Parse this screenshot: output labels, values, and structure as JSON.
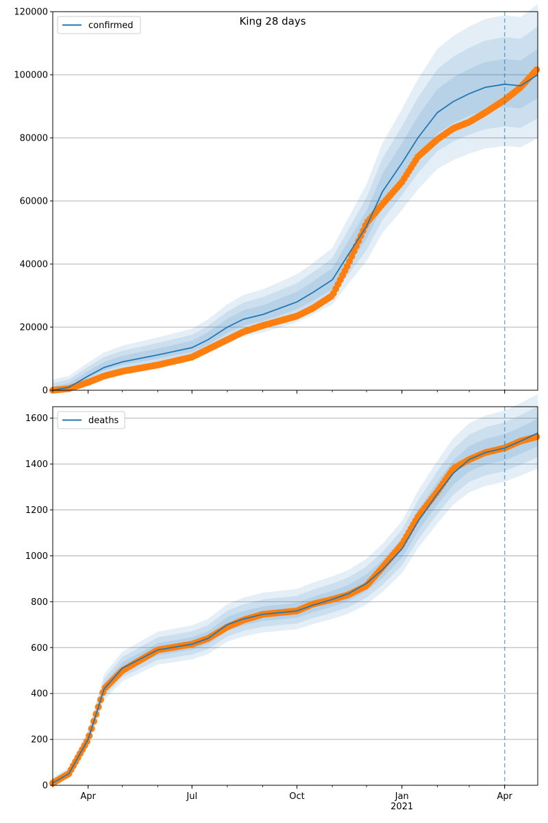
{
  "chart_data": [
    {
      "type": "line",
      "title": "King 28 days",
      "legend": [
        "confirmed"
      ],
      "legend_position": "top-left",
      "grid": "horizontal",
      "xlim": [
        "2020-03-01",
        "2021-04-30"
      ],
      "ylim": [
        0,
        120000
      ],
      "yticks": [
        0,
        20000,
        40000,
        60000,
        80000,
        100000,
        120000
      ],
      "ytick_labels": [
        "0",
        "20000",
        "40000",
        "60000",
        "80000",
        "100000",
        "120000"
      ],
      "forecast_start": "2021-04-01",
      "colors": {
        "model": "#1f77b4",
        "observed": "#ff7f0e",
        "band": "#1f77b4",
        "grid": "#b0b0b0"
      },
      "series": [
        {
          "name": "confirmed",
          "role": "model median",
          "x": [
            "2020-03-01",
            "2020-03-15",
            "2020-04-01",
            "2020-04-15",
            "2020-05-01",
            "2020-06-01",
            "2020-07-01",
            "2020-07-15",
            "2020-08-01",
            "2020-08-15",
            "2020-09-01",
            "2020-10-01",
            "2020-10-15",
            "2020-11-01",
            "2020-11-15",
            "2020-12-01",
            "2020-12-15",
            "2021-01-01",
            "2021-01-15",
            "2021-02-01",
            "2021-02-15",
            "2021-03-01",
            "2021-03-15",
            "2021-04-01",
            "2021-04-15",
            "2021-04-30"
          ],
          "y": [
            0,
            900,
            4500,
            7200,
            9000,
            11200,
            13500,
            16000,
            20000,
            22500,
            24000,
            28000,
            31000,
            35000,
            43000,
            52000,
            63000,
            72000,
            80000,
            88000,
            91500,
            94000,
            96000,
            97000,
            96500,
            100000
          ]
        },
        {
          "name": "",
          "role": "observed",
          "x": [
            "2020-03-01",
            "2020-03-15",
            "2020-04-01",
            "2020-04-15",
            "2020-05-01",
            "2020-06-01",
            "2020-07-01",
            "2020-07-15",
            "2020-08-01",
            "2020-08-15",
            "2020-09-01",
            "2020-10-01",
            "2020-10-15",
            "2020-11-01",
            "2020-11-15",
            "2020-12-01",
            "2020-12-15",
            "2021-01-01",
            "2021-01-15",
            "2021-02-01",
            "2021-02-15",
            "2021-03-01",
            "2021-03-15",
            "2021-04-01",
            "2021-04-15",
            "2021-04-30"
          ],
          "y": [
            0,
            500,
            2500,
            4500,
            6000,
            8000,
            10500,
            13000,
            16000,
            18500,
            20500,
            23500,
            26000,
            30000,
            40000,
            53000,
            59000,
            66000,
            74000,
            79500,
            83000,
            85000,
            88000,
            92000,
            96000,
            102000
          ]
        }
      ],
      "band_widths": [
        0.07,
        0.13,
        0.19
      ]
    },
    {
      "type": "line",
      "title": "",
      "legend": [
        "deaths"
      ],
      "legend_position": "top-left",
      "grid": "horizontal",
      "xlim": [
        "2020-03-01",
        "2021-04-30"
      ],
      "ylim": [
        0,
        1650
      ],
      "yticks": [
        0,
        200,
        400,
        600,
        800,
        1000,
        1200,
        1400,
        1600
      ],
      "ytick_labels": [
        "0",
        "200",
        "400",
        "600",
        "800",
        "1000",
        "1200",
        "1400",
        "1600"
      ],
      "xticks": [
        "2020-04-01",
        "2020-07-01",
        "2020-10-01",
        "2021-01-01",
        "2021-04-01"
      ],
      "xtick_labels": [
        "Apr",
        "Jul",
        "Oct",
        "Jan\n2021",
        "Apr"
      ],
      "forecast_start": "2021-04-01",
      "colors": {
        "model": "#1f77b4",
        "observed": "#ff7f0e",
        "band": "#1f77b4",
        "grid": "#b0b0b0"
      },
      "series": [
        {
          "name": "deaths",
          "role": "model median",
          "x": [
            "2020-03-01",
            "2020-03-15",
            "2020-04-01",
            "2020-04-15",
            "2020-05-01",
            "2020-06-01",
            "2020-07-01",
            "2020-07-15",
            "2020-08-01",
            "2020-08-15",
            "2020-09-01",
            "2020-10-01",
            "2020-10-15",
            "2020-11-01",
            "2020-11-15",
            "2020-12-01",
            "2020-12-15",
            "2021-01-01",
            "2021-01-15",
            "2021-02-01",
            "2021-02-15",
            "2021-03-01",
            "2021-03-15",
            "2021-04-01",
            "2021-04-15",
            "2021-04-30"
          ],
          "y": [
            10,
            50,
            200,
            420,
            510,
            590,
            615,
            640,
            700,
            725,
            745,
            760,
            785,
            810,
            835,
            880,
            940,
            1030,
            1150,
            1270,
            1360,
            1420,
            1450,
            1470,
            1500,
            1535
          ]
        },
        {
          "name": "",
          "role": "observed",
          "x": [
            "2020-03-01",
            "2020-03-15",
            "2020-04-01",
            "2020-04-15",
            "2020-05-01",
            "2020-06-01",
            "2020-07-01",
            "2020-07-15",
            "2020-08-01",
            "2020-08-15",
            "2020-09-01",
            "2020-10-01",
            "2020-10-15",
            "2020-11-01",
            "2020-11-15",
            "2020-12-01",
            "2020-12-15",
            "2021-01-01",
            "2021-01-15",
            "2021-02-01",
            "2021-02-15",
            "2021-03-01",
            "2021-03-15",
            "2021-04-01",
            "2021-04-15",
            "2021-04-30"
          ],
          "y": [
            10,
            50,
            200,
            420,
            500,
            590,
            615,
            640,
            690,
            720,
            745,
            760,
            790,
            810,
            830,
            870,
            950,
            1050,
            1170,
            1280,
            1380,
            1420,
            1450,
            1470,
            1500,
            1520
          ]
        }
      ],
      "band_widths": [
        0.035,
        0.065,
        0.095
      ]
    }
  ]
}
